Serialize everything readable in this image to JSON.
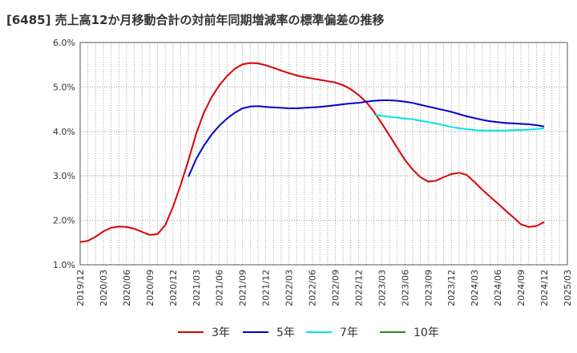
{
  "chart_data": {
    "type": "line",
    "title": "[6485]  売上高12か月移動合計の対前年同期増減率の標準偏差の推移",
    "xlabel": "",
    "ylabel": "",
    "ylim": [
      1.0,
      6.0
    ],
    "yticks": [
      "1.0%",
      "2.0%",
      "3.0%",
      "4.0%",
      "5.0%",
      "6.0%"
    ],
    "xticks": [
      "2019/12",
      "2020/03",
      "2020/06",
      "2020/09",
      "2020/12",
      "2021/03",
      "2021/06",
      "2021/09",
      "2021/12",
      "2022/03",
      "2022/06",
      "2022/09",
      "2022/12",
      "2023/03",
      "2023/06",
      "2023/09",
      "2023/12",
      "2024/03",
      "2024/06",
      "2024/09",
      "2024/12",
      "2025/03"
    ],
    "grid": true,
    "legend_position": "bottom",
    "series": [
      {
        "name": "3年",
        "color": "#dd0000",
        "x": [
          "2019/12",
          "2020/01",
          "2020/02",
          "2020/03",
          "2020/04",
          "2020/05",
          "2020/06",
          "2020/07",
          "2020/08",
          "2020/09",
          "2020/10",
          "2020/11",
          "2020/12",
          "2021/01",
          "2021/02",
          "2021/03",
          "2021/04",
          "2021/05",
          "2021/06",
          "2021/07",
          "2021/08",
          "2021/09",
          "2021/10",
          "2021/11",
          "2021/12",
          "2022/01",
          "2022/02",
          "2022/03",
          "2022/04",
          "2022/05",
          "2022/06",
          "2022/07",
          "2022/08",
          "2022/09",
          "2022/10",
          "2022/11",
          "2022/12",
          "2023/01",
          "2023/02",
          "2023/03",
          "2023/04",
          "2023/05",
          "2023/06",
          "2023/07",
          "2023/08",
          "2023/09",
          "2023/10",
          "2023/11",
          "2023/12",
          "2024/01",
          "2024/02",
          "2024/03",
          "2024/04",
          "2024/05",
          "2024/06",
          "2024/07",
          "2024/08",
          "2024/09",
          "2024/10",
          "2024/11",
          "2024/12"
        ],
        "values": [
          1.51,
          1.54,
          1.63,
          1.75,
          1.83,
          1.86,
          1.85,
          1.81,
          1.74,
          1.67,
          1.69,
          1.89,
          2.3,
          2.8,
          3.35,
          3.95,
          4.42,
          4.77,
          5.04,
          5.25,
          5.41,
          5.51,
          5.54,
          5.53,
          5.49,
          5.43,
          5.37,
          5.31,
          5.26,
          5.22,
          5.19,
          5.16,
          5.13,
          5.1,
          5.04,
          4.95,
          4.82,
          4.66,
          4.44,
          4.18,
          3.91,
          3.63,
          3.36,
          3.14,
          2.97,
          2.87,
          2.89,
          2.97,
          3.04,
          3.07,
          3.02,
          2.86,
          2.69,
          2.53,
          2.38,
          2.22,
          2.07,
          1.91,
          1.85,
          1.87,
          1.96
        ]
      },
      {
        "name": "5年",
        "color": "#0000cc",
        "x": [
          "2021/02",
          "2021/03",
          "2021/04",
          "2021/05",
          "2021/06",
          "2021/07",
          "2021/08",
          "2021/09",
          "2021/10",
          "2021/11",
          "2021/12",
          "2022/01",
          "2022/02",
          "2022/03",
          "2022/04",
          "2022/05",
          "2022/06",
          "2022/07",
          "2022/08",
          "2022/09",
          "2022/10",
          "2022/11",
          "2022/12",
          "2023/01",
          "2023/02",
          "2023/03",
          "2023/04",
          "2023/05",
          "2023/06",
          "2023/07",
          "2023/08",
          "2023/09",
          "2023/10",
          "2023/11",
          "2023/12",
          "2024/01",
          "2024/02",
          "2024/03",
          "2024/04",
          "2024/05",
          "2024/06",
          "2024/07",
          "2024/08",
          "2024/09",
          "2024/10",
          "2024/11",
          "2024/12"
        ],
        "values": [
          2.98,
          3.38,
          3.68,
          3.93,
          4.13,
          4.29,
          4.42,
          4.52,
          4.56,
          4.57,
          4.55,
          4.54,
          4.53,
          4.52,
          4.52,
          4.53,
          4.54,
          4.55,
          4.57,
          4.59,
          4.61,
          4.63,
          4.64,
          4.67,
          4.69,
          4.7,
          4.7,
          4.69,
          4.67,
          4.64,
          4.6,
          4.56,
          4.52,
          4.48,
          4.44,
          4.39,
          4.34,
          4.3,
          4.26,
          4.23,
          4.21,
          4.19,
          4.18,
          4.17,
          4.16,
          4.14,
          4.11
        ]
      },
      {
        "name": "7年",
        "color": "#00e5e5",
        "x": [
          "2023/02",
          "2023/03",
          "2023/04",
          "2023/05",
          "2023/06",
          "2023/07",
          "2023/08",
          "2023/09",
          "2023/10",
          "2023/11",
          "2023/12",
          "2024/01",
          "2024/02",
          "2024/03",
          "2024/04",
          "2024/05",
          "2024/06",
          "2024/07",
          "2024/08",
          "2024/09",
          "2024/10",
          "2024/11",
          "2024/12"
        ],
        "values": [
          4.37,
          4.35,
          4.33,
          4.31,
          4.29,
          4.27,
          4.24,
          4.21,
          4.18,
          4.14,
          4.1,
          4.07,
          4.05,
          4.03,
          4.02,
          4.02,
          4.02,
          4.02,
          4.03,
          4.03,
          4.04,
          4.05,
          4.07
        ]
      },
      {
        "name": "10年",
        "color": "#228b22",
        "x": [],
        "values": []
      }
    ]
  }
}
